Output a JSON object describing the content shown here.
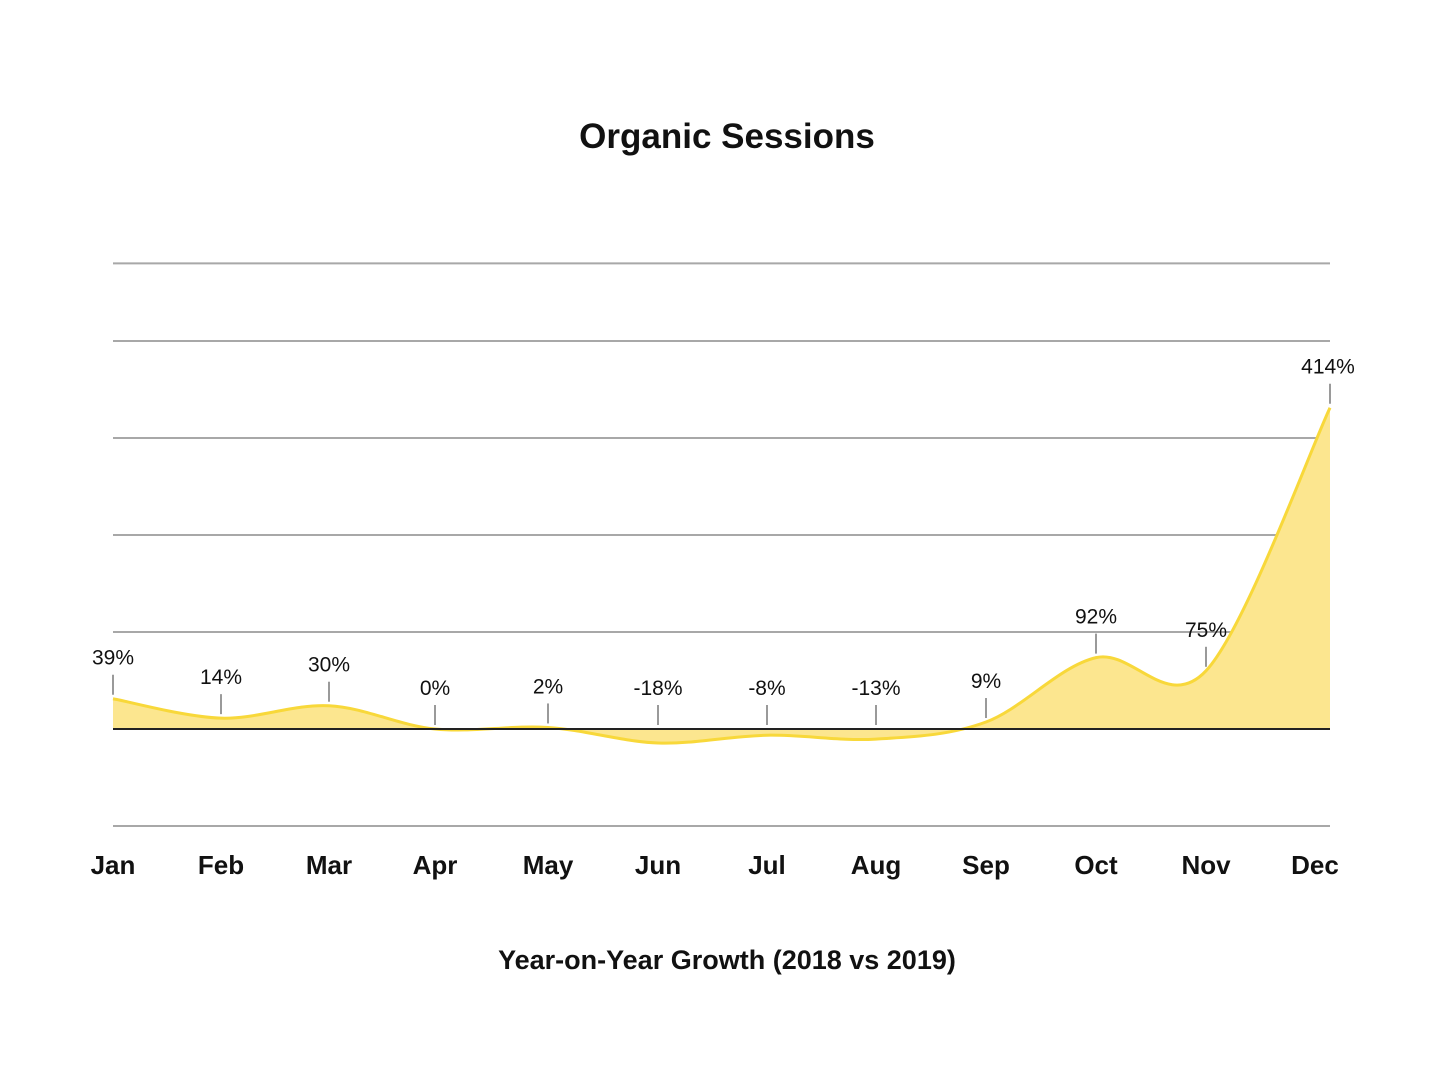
{
  "chart_data": {
    "type": "area",
    "title": "Organic Sessions",
    "xlabel": "Year-on-Year Growth (2018 vs 2019)",
    "ylabel": "",
    "categories": [
      "Jan",
      "Feb",
      "Mar",
      "Apr",
      "May",
      "Jun",
      "Jul",
      "Aug",
      "Sep",
      "Oct",
      "Nov",
      "Dec"
    ],
    "series": [
      {
        "values": [
          39,
          14,
          30,
          0,
          2,
          -18,
          -8,
          -13,
          9,
          92,
          75,
          414
        ],
        "labels": [
          "39%",
          "14%",
          "30%",
          "0%",
          "2%",
          "-18%",
          "-8%",
          "-13%",
          "9%",
          "92%",
          "75%",
          "414%"
        ]
      }
    ],
    "ylim": [
      -125,
      600
    ],
    "yticks": [
      -125,
      0,
      125,
      250,
      375,
      500,
      600
    ],
    "grid": true,
    "legend": "none",
    "colors": {
      "line": "#F8D83A",
      "fill": "#FCE68F",
      "grid": "#A8A8A8",
      "zero_line": "#222222",
      "text": "#111111"
    }
  }
}
